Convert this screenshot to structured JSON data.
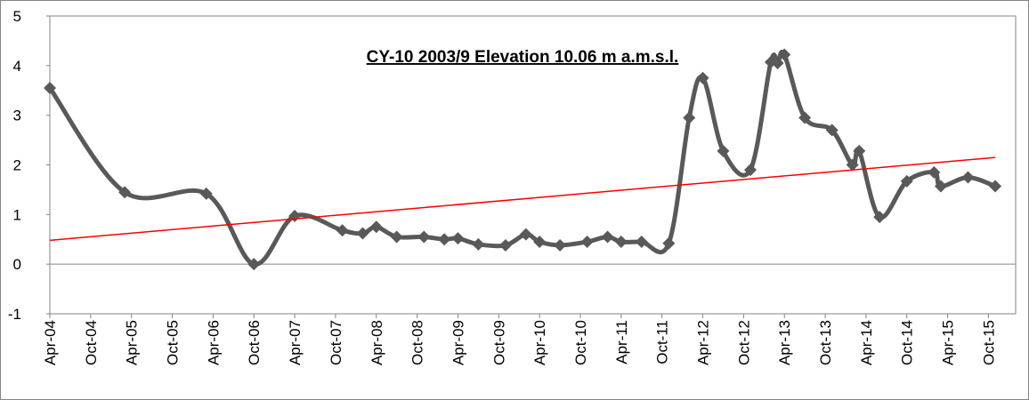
{
  "chart_data": {
    "type": "line",
    "title": "CY-10 2003/9 Elevation 10.06 m a.m.s.l.",
    "series": [
      {
        "color": "#595959",
        "x": [
          "Apr-04",
          "Mar-05",
          "Mar-06",
          "Oct-06",
          "Apr-07",
          "Nov-07",
          "Feb-08",
          "Apr-08",
          "Jul-08",
          "Nov-08",
          "Feb-09",
          "Apr-09",
          "Jul-09",
          "Nov-09",
          "Feb-10",
          "Apr-10",
          "Jul-10",
          "Nov-10",
          "Feb-11",
          "Apr-11",
          "Jul-11",
          "Nov-11",
          "Feb-12",
          "Apr-12",
          "Jul-12",
          "Nov-12",
          "Feb-13",
          "Mar-13",
          "Apr-13",
          "Jul-13",
          "Nov-13",
          "Feb-14",
          "Mar-14",
          "Jun-14",
          "Oct-14",
          "Feb-15",
          "Mar-15",
          "Jul-15",
          "Nov-15"
        ],
        "values": [
          3.55,
          1.45,
          1.42,
          0,
          0.97,
          0.68,
          0.62,
          0.75,
          0.55,
          0.55,
          0.5,
          0.52,
          0.4,
          0.38,
          0.6,
          0.45,
          0.38,
          0.45,
          0.55,
          0.45,
          0.45,
          0.42,
          2.95,
          3.75,
          2.28,
          1.9,
          4.07,
          4.05,
          4.22,
          2.95,
          2.7,
          2.0,
          2.28,
          0.95,
          1.67,
          1.85,
          1.57,
          1.75,
          1.57
        ]
      }
    ],
    "trendline": {
      "color": "#ff0000",
      "x": [
        "Apr-04",
        "Nov-15"
      ],
      "values": [
        0.48,
        2.15
      ]
    },
    "xlim": [
      "Apr-04",
      "Feb-16"
    ],
    "xticks": [
      "Apr-04",
      "Oct-04",
      "Apr-05",
      "Oct-05",
      "Apr-06",
      "Oct-06",
      "Apr-07",
      "Oct-07",
      "Apr-08",
      "Oct-08",
      "Apr-09",
      "Oct-09",
      "Apr-10",
      "Oct-10",
      "Apr-11",
      "Oct-11",
      "Apr-12",
      "Oct-12",
      "Apr-13",
      "Oct-13",
      "Apr-14",
      "Oct-14",
      "Apr-15",
      "Oct-15"
    ],
    "ylim": [
      -1,
      5
    ],
    "yticks": [
      -1,
      0,
      1,
      2,
      3,
      4,
      5
    ],
    "grid": false
  }
}
